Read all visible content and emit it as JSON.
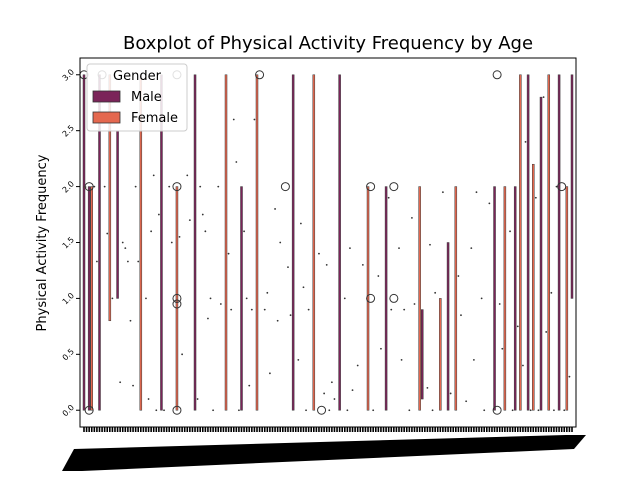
{
  "chart_data": {
    "type": "box",
    "title": "Boxplot of Physical Activity Frequency by Age",
    "xlabel": "",
    "ylabel": "Physical Activity Frequency",
    "ylim": [
      -0.15,
      3.15
    ],
    "y_ticks": [
      0.0,
      0.5,
      1.0,
      1.5,
      2.0,
      2.5,
      3.0
    ],
    "y_tick_labels": [
      "0.0",
      "0.5",
      "1.0",
      "1.5",
      "2.0",
      "2.5",
      "3.0"
    ],
    "x_tick_count": 190,
    "legend": {
      "title": "Gender",
      "placement": "upper-left",
      "entries": [
        {
          "name": "Male",
          "color": "#7b2459"
        },
        {
          "name": "Female",
          "color": "#e4684f"
        }
      ]
    },
    "boxes": [
      {
        "pos": 0.0,
        "lo": 0.0,
        "hi": 3.0,
        "color": "#7b2459"
      },
      {
        "pos": 0.4,
        "lo": 2.0,
        "hi": 2.0,
        "color": "#e4684f"
      },
      {
        "pos": 2.0,
        "lo": 0.0,
        "hi": 2.0,
        "color": "#7b2459"
      },
      {
        "pos": 3.0,
        "lo": 0.0,
        "hi": 2.0,
        "color": "#e4684f"
      },
      {
        "pos": 6.0,
        "lo": 0.0,
        "hi": 3.0,
        "color": "#7b2459"
      },
      {
        "pos": 10.0,
        "lo": 0.8,
        "hi": 3.0,
        "color": "#e4684f"
      },
      {
        "pos": 13.0,
        "lo": 1.0,
        "hi": 2.5,
        "color": "#7b2459"
      },
      {
        "pos": 22.0,
        "lo": 0.0,
        "hi": 3.0,
        "color": "#e4684f"
      },
      {
        "pos": 30.0,
        "lo": 0.0,
        "hi": 3.0,
        "color": "#7b2459"
      },
      {
        "pos": 36.0,
        "lo": 0.0,
        "hi": 2.0,
        "color": "#e4684f"
      },
      {
        "pos": 43.0,
        "lo": 0.0,
        "hi": 3.0,
        "color": "#7b2459"
      },
      {
        "pos": 55.0,
        "lo": 0.0,
        "hi": 3.0,
        "color": "#e4684f"
      },
      {
        "pos": 61.0,
        "lo": 0.0,
        "hi": 2.0,
        "color": "#7b2459"
      },
      {
        "pos": 67.0,
        "lo": 0.0,
        "hi": 3.0,
        "color": "#e4684f"
      },
      {
        "pos": 81.0,
        "lo": 0.0,
        "hi": 3.0,
        "color": "#7b2459"
      },
      {
        "pos": 89.0,
        "lo": 0.0,
        "hi": 3.0,
        "color": "#e4684f"
      },
      {
        "pos": 99.0,
        "lo": 0.0,
        "hi": 3.0,
        "color": "#7b2459"
      },
      {
        "pos": 110.0,
        "lo": 0.0,
        "hi": 2.0,
        "color": "#e4684f"
      },
      {
        "pos": 117.0,
        "lo": 0.0,
        "hi": 2.0,
        "color": "#7b2459"
      },
      {
        "pos": 130.0,
        "lo": 0.0,
        "hi": 2.0,
        "color": "#e4684f"
      },
      {
        "pos": 131.0,
        "lo": 0.1,
        "hi": 0.9,
        "color": "#7b2459"
      },
      {
        "pos": 138.0,
        "lo": 0.0,
        "hi": 1.0,
        "color": "#e4684f"
      },
      {
        "pos": 141.0,
        "lo": 0.0,
        "hi": 1.5,
        "color": "#7b2459"
      },
      {
        "pos": 144.0,
        "lo": 0.0,
        "hi": 2.0,
        "color": "#e4684f"
      },
      {
        "pos": 159.0,
        "lo": 0.0,
        "hi": 2.0,
        "color": "#7b2459"
      },
      {
        "pos": 163.0,
        "lo": 0.0,
        "hi": 2.0,
        "color": "#e4684f"
      },
      {
        "pos": 167.0,
        "lo": 0.0,
        "hi": 2.0,
        "color": "#7b2459"
      },
      {
        "pos": 169.0,
        "lo": 0.0,
        "hi": 3.0,
        "color": "#e4684f"
      },
      {
        "pos": 172.0,
        "lo": 0.0,
        "hi": 3.0,
        "color": "#7b2459"
      },
      {
        "pos": 174.0,
        "lo": 0.0,
        "hi": 2.2,
        "color": "#e4684f"
      },
      {
        "pos": 177.0,
        "lo": 0.0,
        "hi": 2.8,
        "color": "#7b2459"
      },
      {
        "pos": 180.0,
        "lo": 0.0,
        "hi": 3.0,
        "color": "#e4684f"
      },
      {
        "pos": 184.0,
        "lo": 0.0,
        "hi": 3.0,
        "color": "#7b2459"
      },
      {
        "pos": 187.0,
        "lo": 0.0,
        "hi": 2.0,
        "color": "#e4684f"
      },
      {
        "pos": 189.0,
        "lo": 1.0,
        "hi": 3.0,
        "color": "#7b2459"
      }
    ],
    "outliers": [
      {
        "pos": 0.0,
        "y": 3.0
      },
      {
        "pos": 2.0,
        "y": 2.0
      },
      {
        "pos": 2.0,
        "y": 0.0
      },
      {
        "pos": 7.0,
        "y": 3.0
      },
      {
        "pos": 36.0,
        "y": 3.0
      },
      {
        "pos": 36.0,
        "y": 2.0
      },
      {
        "pos": 36.0,
        "y": 1.0
      },
      {
        "pos": 36.0,
        "y": 0.95
      },
      {
        "pos": 36.0,
        "y": 0.0
      },
      {
        "pos": 68.0,
        "y": 3.0
      },
      {
        "pos": 78.0,
        "y": 2.0
      },
      {
        "pos": 92.0,
        "y": 0.0
      },
      {
        "pos": 111.0,
        "y": 2.0
      },
      {
        "pos": 111.0,
        "y": 1.0
      },
      {
        "pos": 120.0,
        "y": 2.0
      },
      {
        "pos": 120.0,
        "y": 1.0
      },
      {
        "pos": 160.0,
        "y": 3.0
      },
      {
        "pos": 160.0,
        "y": 0.0
      },
      {
        "pos": 185.0,
        "y": 2.0
      }
    ],
    "dots": [
      {
        "pos": 4,
        "y": 2.0
      },
      {
        "pos": 5,
        "y": 1.33
      },
      {
        "pos": 8,
        "y": 2.0
      },
      {
        "pos": 9,
        "y": 1.58
      },
      {
        "pos": 11,
        "y": 1.0
      },
      {
        "pos": 14,
        "y": 0.25
      },
      {
        "pos": 15,
        "y": 1.5
      },
      {
        "pos": 16,
        "y": 1.45
      },
      {
        "pos": 17,
        "y": 1.33
      },
      {
        "pos": 18,
        "y": 0.8
      },
      {
        "pos": 19,
        "y": 0.22
      },
      {
        "pos": 20,
        "y": 2.0
      },
      {
        "pos": 21,
        "y": 1.33
      },
      {
        "pos": 24,
        "y": 1.0
      },
      {
        "pos": 25,
        "y": 0.1
      },
      {
        "pos": 26,
        "y": 1.6
      },
      {
        "pos": 27,
        "y": 2.1
      },
      {
        "pos": 28,
        "y": 0.0
      },
      {
        "pos": 29,
        "y": 1.75
      },
      {
        "pos": 31,
        "y": 0.0
      },
      {
        "pos": 33,
        "y": 2.0
      },
      {
        "pos": 34,
        "y": 1.5
      },
      {
        "pos": 37,
        "y": 1.55
      },
      {
        "pos": 38,
        "y": 0.5
      },
      {
        "pos": 40,
        "y": 2.1
      },
      {
        "pos": 41,
        "y": 1.7
      },
      {
        "pos": 44,
        "y": 0.1
      },
      {
        "pos": 45,
        "y": 2.0
      },
      {
        "pos": 46,
        "y": 1.75
      },
      {
        "pos": 47,
        "y": 1.6
      },
      {
        "pos": 48,
        "y": 0.82
      },
      {
        "pos": 49,
        "y": 1.0
      },
      {
        "pos": 50,
        "y": 0.0
      },
      {
        "pos": 52,
        "y": 2.0
      },
      {
        "pos": 53,
        "y": 0.95
      },
      {
        "pos": 56,
        "y": 1.4
      },
      {
        "pos": 57,
        "y": 0.9
      },
      {
        "pos": 58,
        "y": 2.6
      },
      {
        "pos": 59,
        "y": 2.22
      },
      {
        "pos": 60,
        "y": 0.0
      },
      {
        "pos": 62,
        "y": 1.6
      },
      {
        "pos": 63,
        "y": 1.0
      },
      {
        "pos": 64,
        "y": 0.22
      },
      {
        "pos": 65,
        "y": 0.9
      },
      {
        "pos": 66,
        "y": 2.6
      },
      {
        "pos": 70,
        "y": 0.9
      },
      {
        "pos": 71,
        "y": 1.05
      },
      {
        "pos": 72,
        "y": 0.33
      },
      {
        "pos": 74,
        "y": 1.8
      },
      {
        "pos": 75,
        "y": 0.8
      },
      {
        "pos": 76,
        "y": 1.5
      },
      {
        "pos": 79,
        "y": 1.28
      },
      {
        "pos": 80,
        "y": 0.85
      },
      {
        "pos": 83,
        "y": 0.45
      },
      {
        "pos": 84,
        "y": 1.67
      },
      {
        "pos": 85,
        "y": 1.1
      },
      {
        "pos": 86,
        "y": 0.0
      },
      {
        "pos": 87,
        "y": 0.9
      },
      {
        "pos": 91,
        "y": 1.4
      },
      {
        "pos": 93,
        "y": 0.15
      },
      {
        "pos": 94,
        "y": 1.3
      },
      {
        "pos": 95,
        "y": 0.0
      },
      {
        "pos": 96,
        "y": 0.25
      },
      {
        "pos": 97,
        "y": 0.1
      },
      {
        "pos": 101,
        "y": 1.0
      },
      {
        "pos": 102,
        "y": 0.0
      },
      {
        "pos": 103,
        "y": 1.45
      },
      {
        "pos": 104,
        "y": 0.18
      },
      {
        "pos": 106,
        "y": 0.4
      },
      {
        "pos": 108,
        "y": 1.3
      },
      {
        "pos": 112,
        "y": 0.0
      },
      {
        "pos": 114,
        "y": 1.2
      },
      {
        "pos": 115,
        "y": 0.55
      },
      {
        "pos": 118,
        "y": 1.9
      },
      {
        "pos": 119,
        "y": 0.9
      },
      {
        "pos": 122,
        "y": 1.45
      },
      {
        "pos": 123,
        "y": 0.45
      },
      {
        "pos": 124,
        "y": 0.9
      },
      {
        "pos": 126,
        "y": 0.0
      },
      {
        "pos": 127,
        "y": 1.72
      },
      {
        "pos": 128,
        "y": 0.95
      },
      {
        "pos": 133,
        "y": 0.2
      },
      {
        "pos": 134,
        "y": 1.48
      },
      {
        "pos": 135,
        "y": 0.0
      },
      {
        "pos": 136,
        "y": 1.05
      },
      {
        "pos": 139,
        "y": 1.95
      },
      {
        "pos": 142,
        "y": 0.15
      },
      {
        "pos": 145,
        "y": 1.2
      },
      {
        "pos": 146,
        "y": 0.85
      },
      {
        "pos": 148,
        "y": 0.08
      },
      {
        "pos": 150,
        "y": 1.45
      },
      {
        "pos": 151,
        "y": 0.45
      },
      {
        "pos": 152,
        "y": 1.95
      },
      {
        "pos": 154,
        "y": 1.0
      },
      {
        "pos": 155,
        "y": 0.0
      },
      {
        "pos": 157,
        "y": 1.85
      },
      {
        "pos": 161,
        "y": 0.95
      },
      {
        "pos": 162,
        "y": 0.55
      },
      {
        "pos": 165,
        "y": 1.6
      },
      {
        "pos": 166,
        "y": 0.0
      },
      {
        "pos": 168,
        "y": 0.75
      },
      {
        "pos": 170,
        "y": 0.4
      },
      {
        "pos": 171,
        "y": 2.4
      },
      {
        "pos": 173,
        "y": 0.0
      },
      {
        "pos": 175,
        "y": 1.9
      },
      {
        "pos": 176,
        "y": 0.0
      },
      {
        "pos": 178,
        "y": 2.8
      },
      {
        "pos": 179,
        "y": 0.7
      },
      {
        "pos": 181,
        "y": 1.05
      },
      {
        "pos": 182,
        "y": 0.0
      },
      {
        "pos": 183,
        "y": 2.0
      },
      {
        "pos": 186,
        "y": 0.0
      },
      {
        "pos": 188,
        "y": 0.3
      }
    ]
  }
}
